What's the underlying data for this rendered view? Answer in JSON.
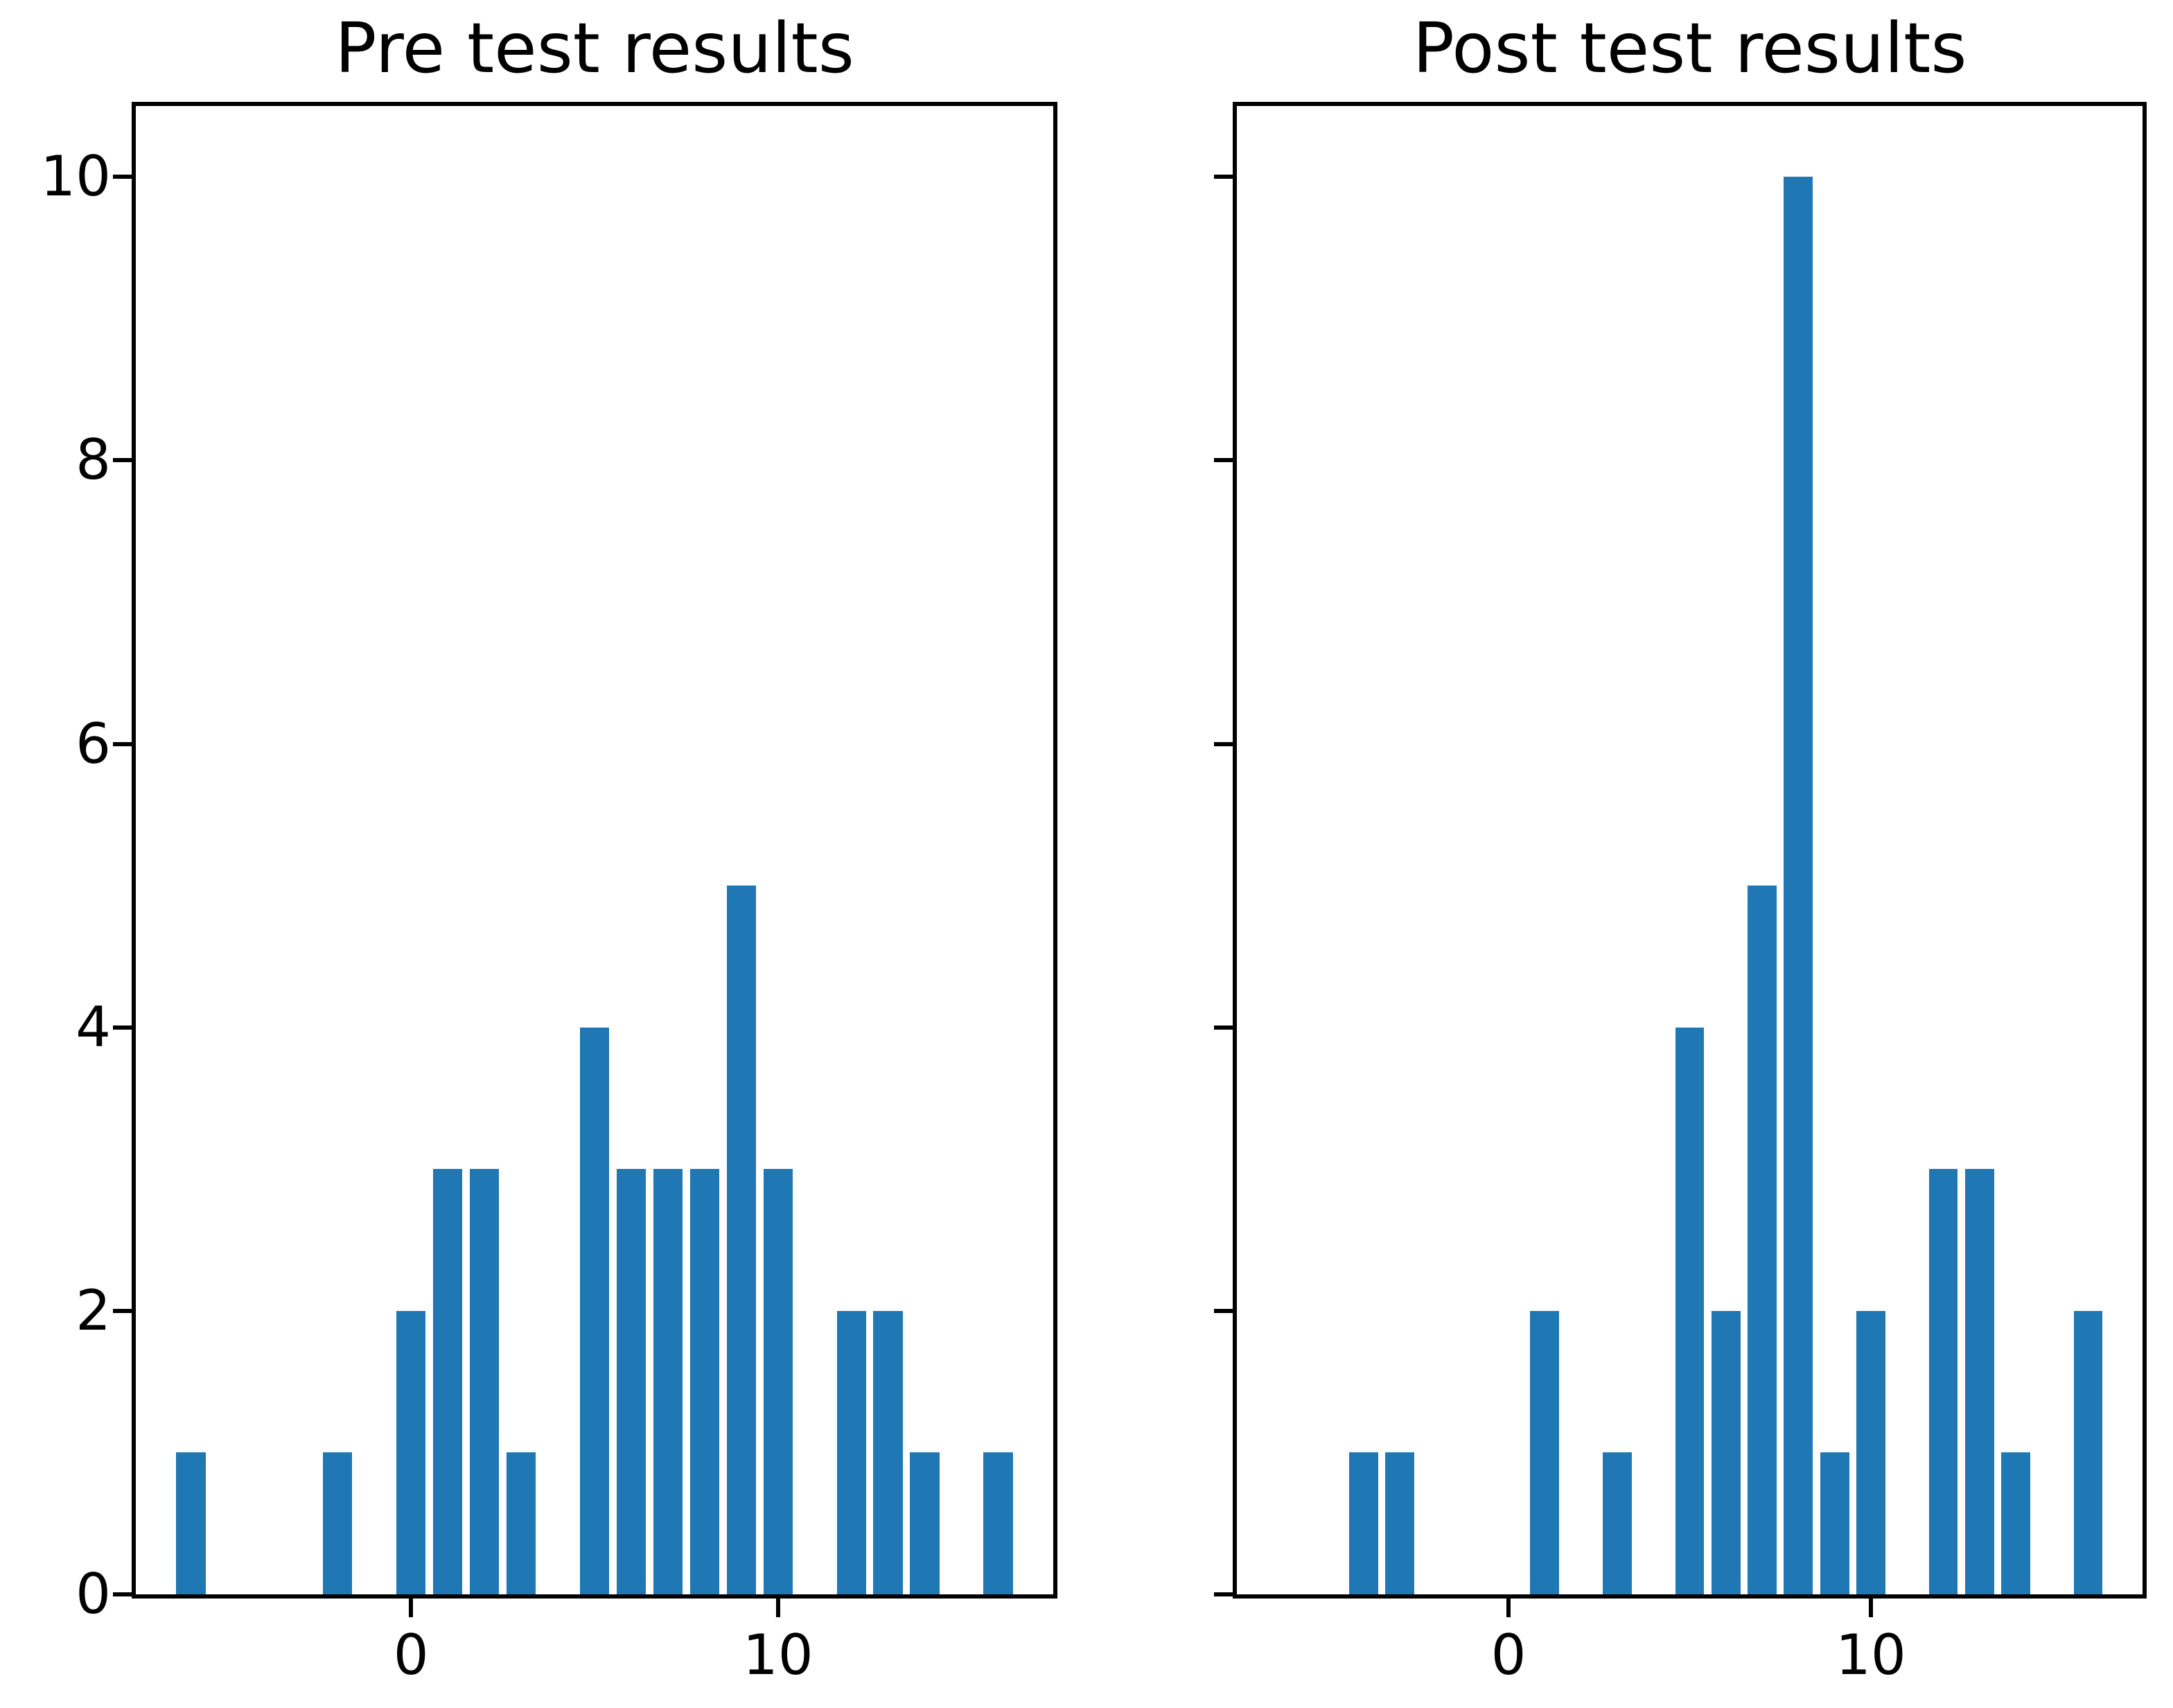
{
  "figure": {
    "background": "#ffffff",
    "text_color": "#000000"
  },
  "chart_data": [
    {
      "type": "bar",
      "title": "Pre test results",
      "x": [
        -6,
        -2,
        0,
        1,
        2,
        3,
        5,
        6,
        7,
        8,
        9,
        10,
        12,
        13,
        14,
        16
      ],
      "values": [
        1,
        1,
        2,
        3,
        3,
        1,
        4,
        3,
        3,
        3,
        5,
        3,
        2,
        2,
        1,
        1
      ],
      "bar_width": 0.8,
      "bar_color": "#1f77b4",
      "xlim": [
        -7.5,
        17.5
      ],
      "ylim": [
        0,
        10.5
      ],
      "xticks": [
        0,
        10
      ],
      "xtick_labels": [
        "0",
        "10"
      ],
      "yticks": [
        0,
        2,
        4,
        6,
        8,
        10
      ],
      "ytick_labels": [
        "0",
        "2",
        "4",
        "6",
        "8",
        "10"
      ],
      "show_ytick_labels": true,
      "grid": false,
      "legend": false
    },
    {
      "type": "bar",
      "title": "Post test results",
      "x": [
        -4,
        -3,
        1,
        3,
        5,
        6,
        7,
        8,
        9,
        10,
        12,
        13,
        14,
        16
      ],
      "values": [
        1,
        1,
        2,
        1,
        4,
        2,
        5,
        10,
        1,
        2,
        3,
        3,
        1,
        2
      ],
      "bar_width": 0.8,
      "bar_color": "#1f77b4",
      "xlim": [
        -7.5,
        17.5
      ],
      "ylim": [
        0,
        10.5
      ],
      "xticks": [
        0,
        10
      ],
      "xtick_labels": [
        "0",
        "10"
      ],
      "yticks": [
        0,
        2,
        4,
        6,
        8,
        10
      ],
      "ytick_labels": [],
      "show_ytick_labels": false,
      "grid": false,
      "legend": false
    }
  ]
}
